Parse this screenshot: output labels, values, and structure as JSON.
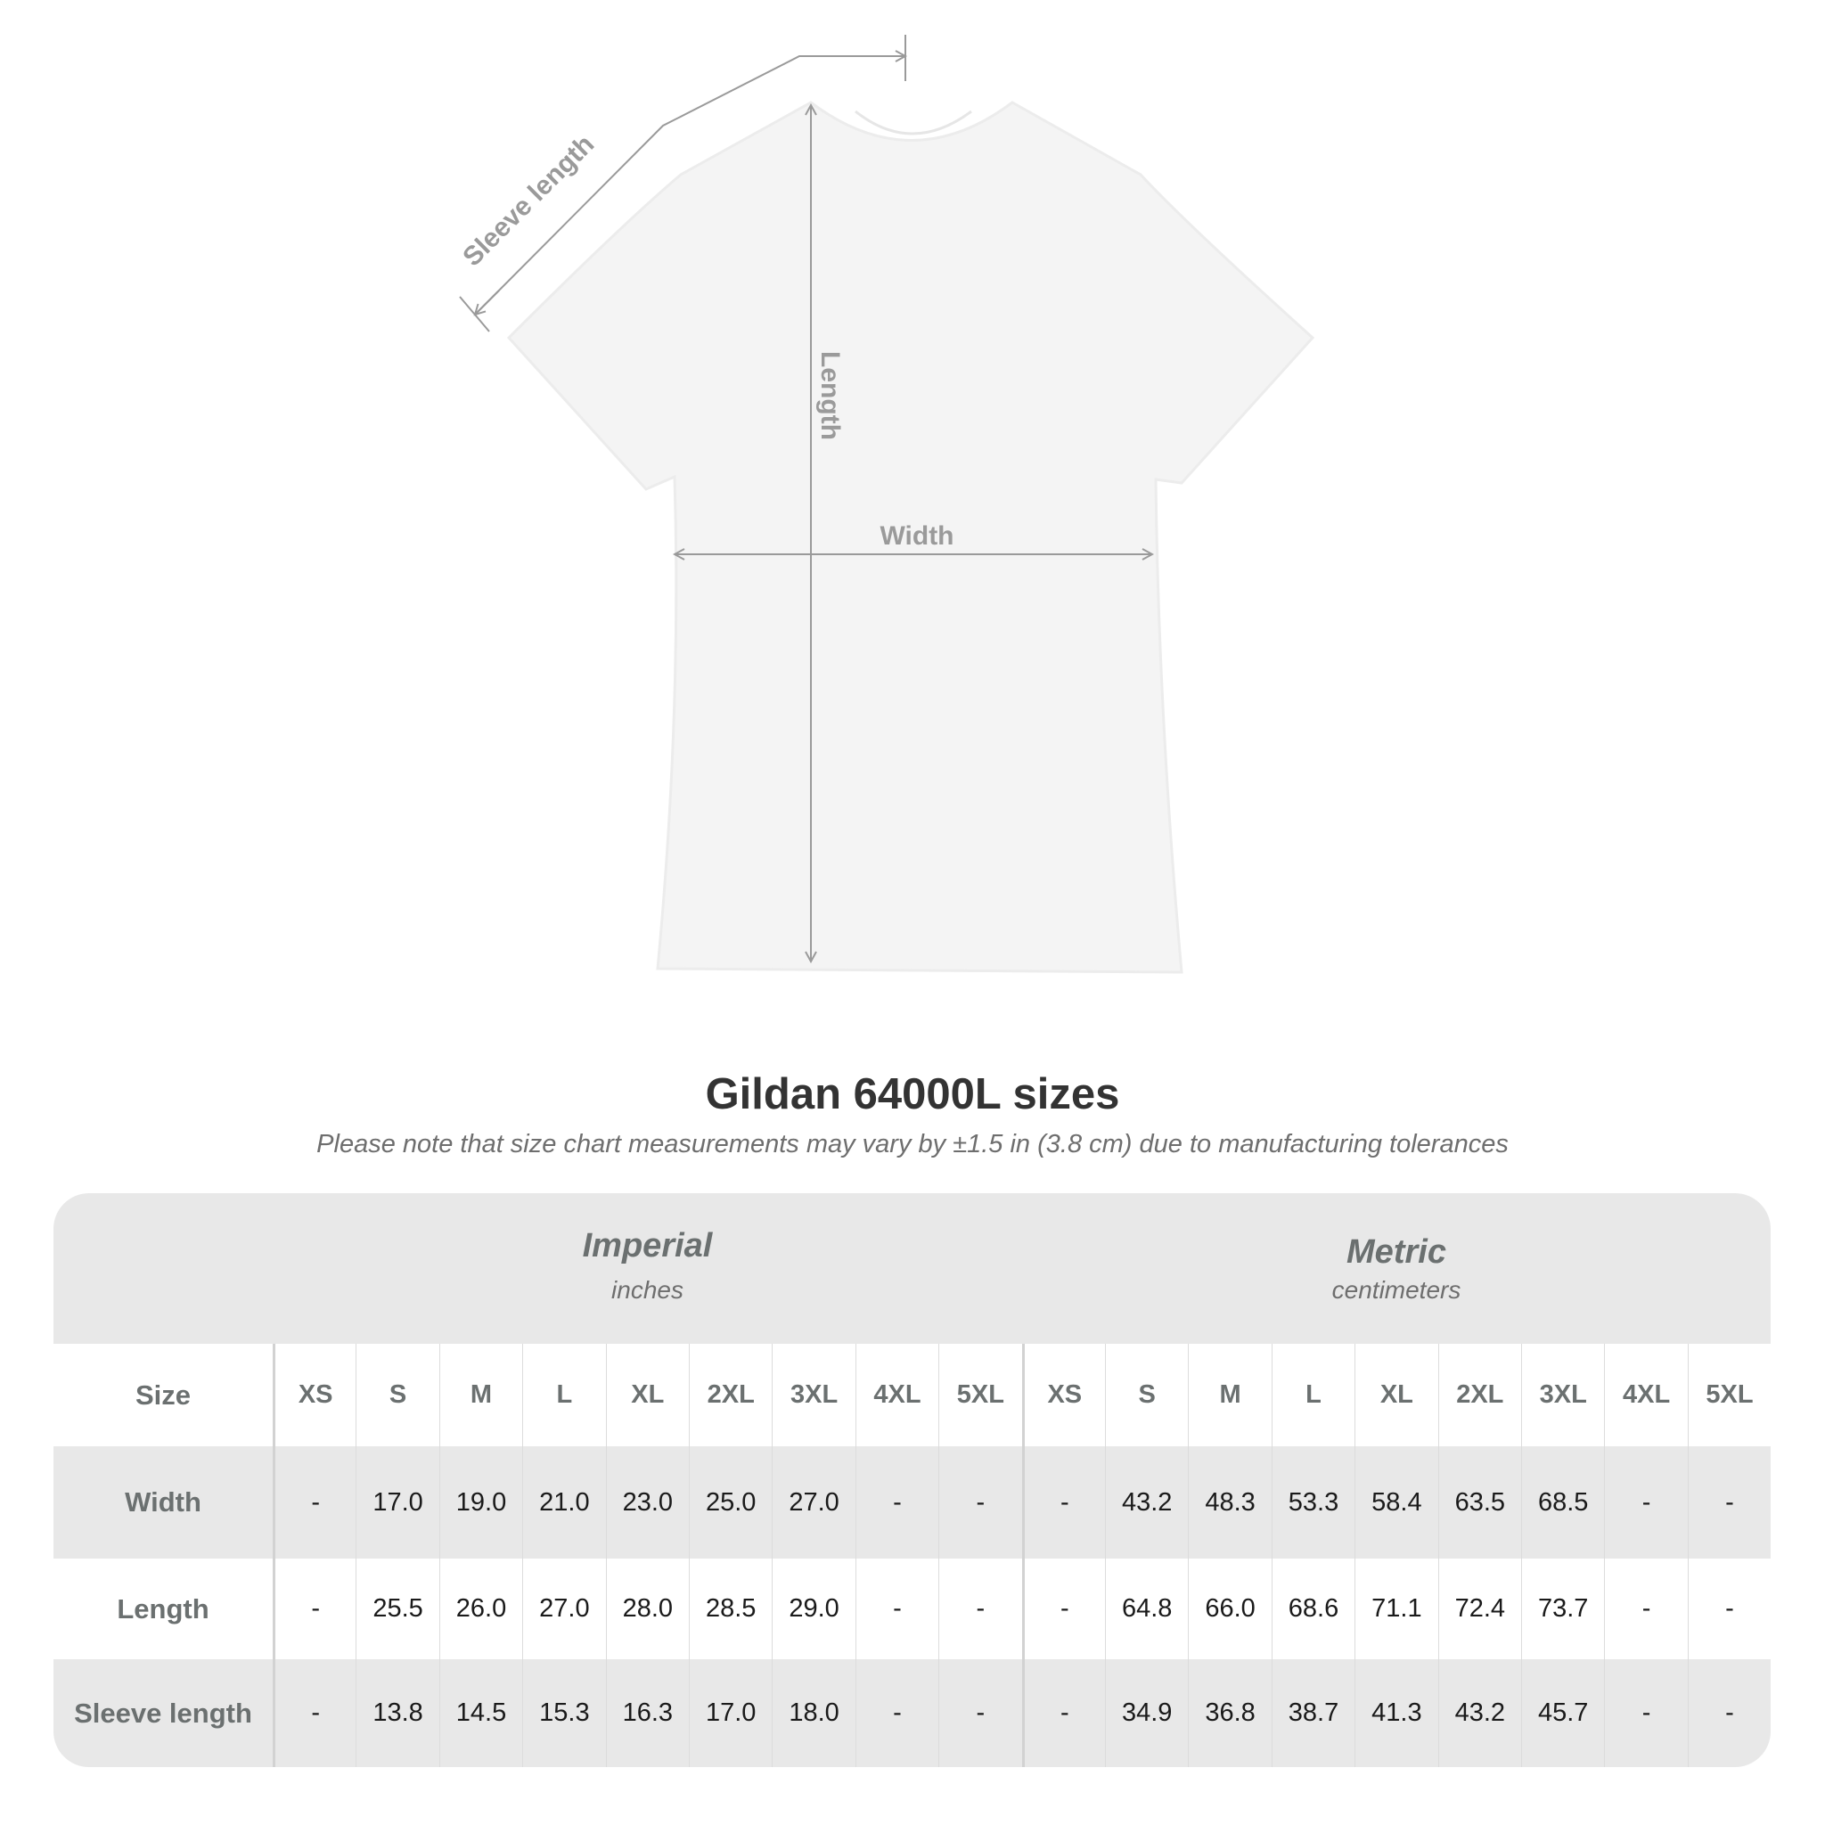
{
  "diagram": {
    "labels": {
      "sleeve": "Sleeve length",
      "length": "Length",
      "width": "Width"
    },
    "shirt_color": "#f4f4f4",
    "line_color": "#9a9a9a"
  },
  "title": "Gildan 64000L sizes",
  "note": "Please note that size chart measurements may vary by ±1.5 in (3.8 cm) due to manufacturing tolerances",
  "table": {
    "size_label": "Size",
    "imperial": {
      "heading": "Imperial",
      "unit": "inches"
    },
    "metric": {
      "heading": "Metric",
      "unit": "centimeters"
    },
    "sizes": [
      "XS",
      "S",
      "M",
      "L",
      "XL",
      "2XL",
      "3XL",
      "4XL",
      "5XL"
    ],
    "rows": [
      {
        "label": "Width",
        "imperial": [
          "-",
          "17.0",
          "19.0",
          "21.0",
          "23.0",
          "25.0",
          "27.0",
          "-",
          "-"
        ],
        "metric": [
          "-",
          "43.2",
          "48.3",
          "53.3",
          "58.4",
          "63.5",
          "68.5",
          "-",
          "-"
        ]
      },
      {
        "label": "Length",
        "imperial": [
          "-",
          "25.5",
          "26.0",
          "27.0",
          "28.0",
          "28.5",
          "29.0",
          "-",
          "-"
        ],
        "metric": [
          "-",
          "64.8",
          "66.0",
          "68.6",
          "71.1",
          "72.4",
          "73.7",
          "-",
          "-"
        ]
      },
      {
        "label": "Sleeve length",
        "imperial": [
          "-",
          "13.8",
          "14.5",
          "15.3",
          "16.3",
          "17.0",
          "18.0",
          "-",
          "-"
        ],
        "metric": [
          "-",
          "34.9",
          "36.8",
          "38.7",
          "41.3",
          "43.2",
          "45.7",
          "-",
          "-"
        ]
      }
    ]
  }
}
